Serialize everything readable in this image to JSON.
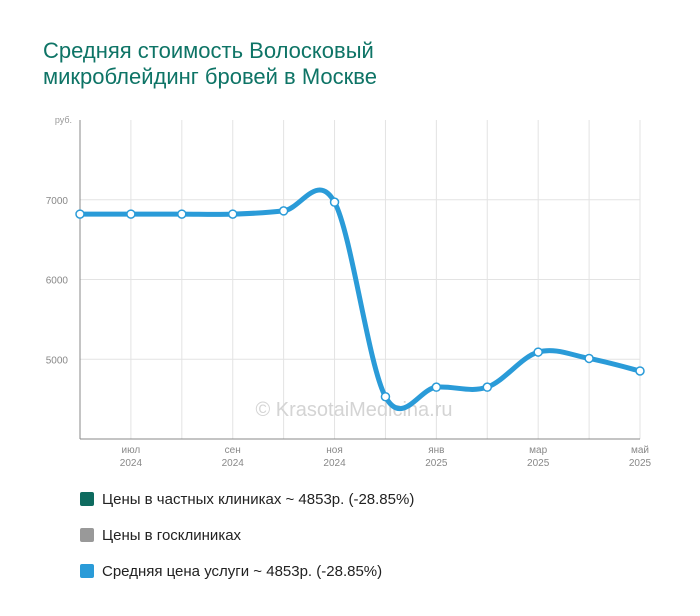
{
  "title_lines": [
    "Средняя стоимость Волосковый",
    "микроблейдинг бровей в Москве"
  ],
  "watermark": "© KrasotaiMedicina.ru",
  "chart_data": {
    "type": "line",
    "y_unit": "руб.",
    "yticks": [
      5000,
      6000,
      7000
    ],
    "ylim": [
      4000,
      8000
    ],
    "xticks": [
      {
        "month": "июл",
        "year": "2024"
      },
      {
        "month": "сен",
        "year": "2024"
      },
      {
        "month": "ноя",
        "year": "2024"
      },
      {
        "month": "янв",
        "year": "2025"
      },
      {
        "month": "мар",
        "year": "2025"
      },
      {
        "month": "май",
        "year": "2025"
      }
    ],
    "series": [
      {
        "name": "Средняя цена услуги",
        "color": "#2a9bd8",
        "points": [
          {
            "x": "2024-06",
            "y": 6820
          },
          {
            "x": "2024-07",
            "y": 6820
          },
          {
            "x": "2024-08",
            "y": 6820
          },
          {
            "x": "2024-09",
            "y": 6820
          },
          {
            "x": "2024-10",
            "y": 6860
          },
          {
            "x": "2024-11",
            "y": 6970
          },
          {
            "x": "2024-12",
            "y": 4530
          },
          {
            "x": "2025-01",
            "y": 4650
          },
          {
            "x": "2025-02",
            "y": 4650
          },
          {
            "x": "2025-03",
            "y": 5090
          },
          {
            "x": "2025-04",
            "y": 5010
          },
          {
            "x": "2025-05",
            "y": 4853
          }
        ]
      }
    ]
  },
  "legend": [
    {
      "label": "Цены в частных клиниках ~ 4853р. (-28.85%)",
      "color": "#0e6b5f"
    },
    {
      "label": "Цены в госклиниках",
      "color": "#999999"
    },
    {
      "label": "Средняя цена услуги ~ 4853р. (-28.85%)",
      "color": "#2a9bd8"
    }
  ]
}
